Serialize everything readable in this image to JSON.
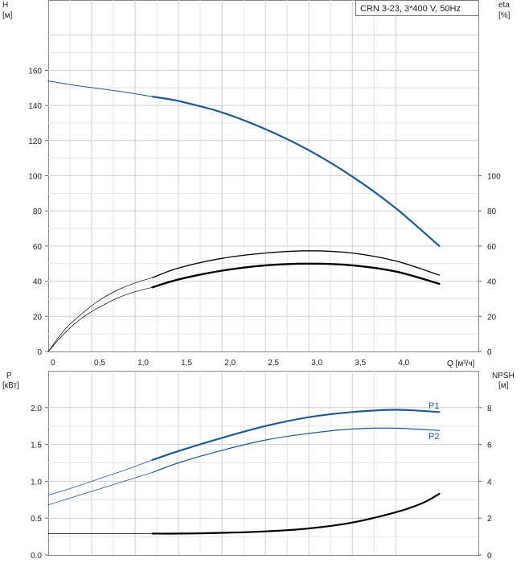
{
  "legend_box": "CRN 3-23, 3*400 V, 50Hz",
  "colors": {
    "blue": "#1f5a92",
    "blue_thin": "#1f5a92",
    "black": "#000000",
    "grid": "#cfcfcf",
    "frame": "#888888"
  },
  "chart_data": [
    {
      "type": "line",
      "name": "top",
      "x_label_short": "Q [м³/ч]",
      "left_label": [
        "H",
        "[м]"
      ],
      "right_label": [
        "eta",
        "[%]"
      ],
      "x_ticks": [
        "0",
        "0,5",
        "1,0",
        "1,5",
        "2,0",
        "2,5",
        "3,0",
        "3,5",
        "4,0"
      ],
      "x_tick_values": [
        0,
        0.5,
        1.0,
        1.5,
        2.0,
        2.5,
        3.0,
        3.5,
        4.0
      ],
      "xlim": [
        0,
        4.95
      ],
      "left_ticks": [
        "0",
        "20",
        "40",
        "60",
        "80",
        "100",
        "120",
        "140",
        "160"
      ],
      "left_tick_values": [
        0,
        20,
        40,
        60,
        80,
        100,
        120,
        140,
        160
      ],
      "ylim": [
        0,
        200
      ],
      "right_ticks": [
        "0",
        "20",
        "40",
        "60",
        "80",
        "100"
      ],
      "right_tick_values": [
        0,
        20,
        40,
        60,
        80,
        100
      ],
      "series": [
        {
          "key": "H_thin",
          "axis": "left",
          "color": "blue",
          "width": 1,
          "x": [
            0,
            0.3,
            0.6,
            0.9,
            1.2
          ],
          "y": [
            154,
            151.5,
            149.5,
            147.5,
            145
          ]
        },
        {
          "key": "H",
          "axis": "left",
          "color": "blue",
          "width": 2.2,
          "x": [
            1.2,
            1.5,
            2.0,
            2.5,
            3.0,
            3.5,
            4.0,
            4.5
          ],
          "y": [
            145,
            142.5,
            136,
            126.5,
            114.5,
            99.5,
            81.5,
            60
          ]
        },
        {
          "key": "eta_upper_thin",
          "axis": "left",
          "color": "black",
          "width": 0.7,
          "x": [
            0,
            0.2,
            0.4,
            0.6,
            0.8,
            1.0,
            1.2
          ],
          "y": [
            0,
            13,
            22,
            29.5,
            35,
            39,
            42
          ]
        },
        {
          "key": "eta_upper",
          "axis": "left",
          "color": "black",
          "width": 1.3,
          "x": [
            1.2,
            1.5,
            2.0,
            2.5,
            3.0,
            3.5,
            4.0,
            4.5
          ],
          "y": [
            42,
            47.5,
            53,
            56,
            57.3,
            56,
            51.5,
            43.5
          ]
        },
        {
          "key": "eta_lower_thin",
          "axis": "left",
          "color": "black",
          "width": 0.7,
          "x": [
            0,
            0.2,
            0.4,
            0.6,
            0.8,
            1.0,
            1.2
          ],
          "y": [
            0,
            11,
            19.5,
            25.5,
            30.5,
            34,
            36.5
          ]
        },
        {
          "key": "eta_lower",
          "axis": "left",
          "color": "black",
          "width": 2.4,
          "x": [
            1.2,
            1.5,
            2.0,
            2.5,
            3.0,
            3.5,
            4.0,
            4.5
          ],
          "y": [
            36.5,
            41,
            46,
            49,
            50,
            49,
            45.5,
            38.5
          ]
        }
      ]
    },
    {
      "type": "line",
      "name": "bottom",
      "left_label": [
        "P",
        "[кВт]"
      ],
      "right_label": [
        "NPSH",
        "[м]"
      ],
      "xlim": [
        0,
        4.95
      ],
      "left_ticks": [
        "0.0",
        "0.5",
        "1.0",
        "1.5",
        "2.0"
      ],
      "left_tick_values": [
        0,
        0.5,
        1.0,
        1.5,
        2.0
      ],
      "ylim": [
        0,
        2.5
      ],
      "right_ticks": [
        "0",
        "2",
        "4",
        "6",
        "8"
      ],
      "right_tick_values": [
        0,
        2,
        4,
        6,
        8
      ],
      "series_labels": [
        "P1",
        "P2"
      ],
      "series": [
        {
          "key": "P1_thin",
          "axis": "left",
          "color": "blue",
          "width": 0.8,
          "x": [
            0,
            0.3,
            0.6,
            0.9,
            1.2
          ],
          "y": [
            0.81,
            0.92,
            1.04,
            1.16,
            1.29
          ]
        },
        {
          "key": "P1",
          "axis": "left",
          "color": "blue",
          "width": 2.2,
          "x": [
            1.2,
            1.5,
            2.0,
            2.5,
            3.0,
            3.5,
            4.0,
            4.5
          ],
          "y": [
            1.29,
            1.41,
            1.59,
            1.75,
            1.87,
            1.94,
            1.97,
            1.94
          ]
        },
        {
          "key": "P2_thin",
          "axis": "left",
          "color": "blue",
          "width": 0.8,
          "x": [
            0,
            0.3,
            0.6,
            0.9,
            1.2
          ],
          "y": [
            0.68,
            0.79,
            0.9,
            1.01,
            1.12
          ]
        },
        {
          "key": "P2",
          "axis": "left",
          "color": "blue",
          "width": 1.2,
          "x": [
            1.2,
            1.5,
            2.0,
            2.5,
            3.0,
            3.5,
            4.0,
            4.5
          ],
          "y": [
            1.12,
            1.25,
            1.42,
            1.56,
            1.65,
            1.71,
            1.72,
            1.69
          ]
        },
        {
          "key": "NPSH_thin",
          "axis": "left",
          "color": "black",
          "width": 0.8,
          "x": [
            0,
            1.2
          ],
          "y": [
            0.29,
            0.29
          ]
        },
        {
          "key": "NPSH",
          "axis": "left",
          "color": "black",
          "width": 2.2,
          "x": [
            1.2,
            1.5,
            2.0,
            2.5,
            3.0,
            3.5,
            4.0,
            4.3,
            4.5
          ],
          "y": [
            0.29,
            0.29,
            0.3,
            0.32,
            0.36,
            0.44,
            0.58,
            0.7,
            0.83
          ]
        }
      ]
    }
  ]
}
